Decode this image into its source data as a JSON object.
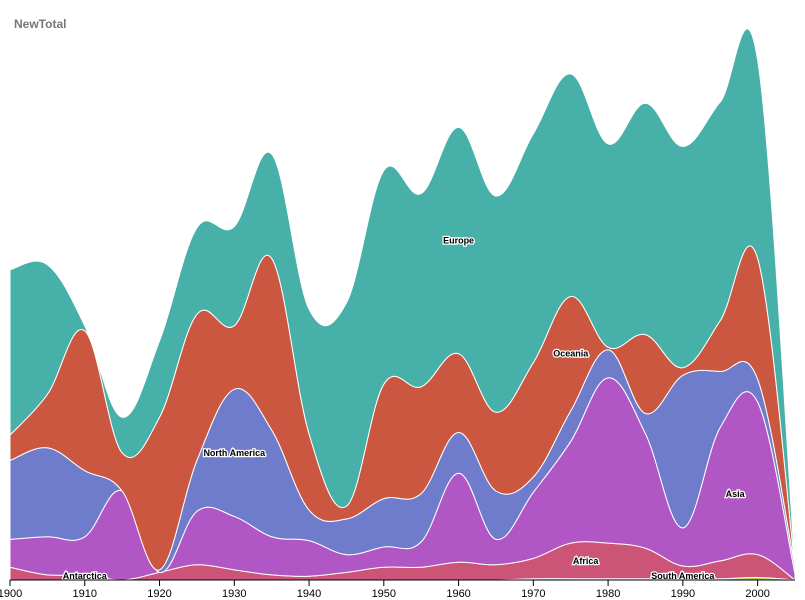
{
  "chart_data": {
    "type": "area",
    "title": "NewTotal",
    "xlabel": "",
    "ylabel": "",
    "layout": "streamgraph",
    "xlim": [
      1900,
      2005
    ],
    "x_ticks": [
      "1900",
      "1910",
      "1920",
      "1930",
      "1940",
      "1950",
      "1960",
      "1970",
      "1980",
      "1990",
      "2000"
    ],
    "x": [
      1900,
      1905,
      1910,
      1915,
      1920,
      1925,
      1930,
      1935,
      1940,
      1945,
      1950,
      1955,
      1960,
      1965,
      1970,
      1975,
      1980,
      1985,
      1990,
      1995,
      2000,
      2005
    ],
    "series": [
      {
        "name": "Antarctica",
        "color": "#f2a84b",
        "values": [
          0,
          0,
          0,
          0,
          0,
          0,
          0,
          0,
          0,
          0,
          0,
          0,
          0,
          0,
          0,
          0,
          0,
          0,
          0,
          0,
          0,
          0
        ]
      },
      {
        "name": "South America",
        "color": "#a8c83e",
        "values": [
          0,
          0,
          0,
          0,
          0,
          0,
          0,
          0,
          0,
          0,
          0,
          0,
          0,
          0,
          1,
          1,
          1,
          1,
          1,
          1,
          2,
          0
        ]
      },
      {
        "name": "Africa",
        "color": "#cc5577",
        "values": [
          10,
          4,
          4,
          0,
          6,
          12,
          8,
          4,
          3,
          6,
          10,
          10,
          14,
          12,
          16,
          28,
          28,
          24,
          10,
          14,
          18,
          0
        ]
      },
      {
        "name": "Asia",
        "color": "#b157c5",
        "values": [
          22,
          30,
          30,
          70,
          0,
          42,
          42,
          30,
          28,
          14,
          16,
          20,
          70,
          20,
          52,
          80,
          130,
          90,
          30,
          105,
          120,
          5
        ]
      },
      {
        "name": "North America",
        "color": "#6e7ccb",
        "values": [
          62,
          70,
          52,
          0,
          2,
          40,
          100,
          84,
          24,
          28,
          38,
          38,
          32,
          38,
          12,
          24,
          22,
          16,
          120,
          44,
          18,
          5
        ]
      },
      {
        "name": "Oceania",
        "color": "#cc5740",
        "values": [
          20,
          42,
          110,
          30,
          120,
          115,
          50,
          135,
          60,
          10,
          90,
          84,
          62,
          62,
          90,
          90,
          2,
          62,
          6,
          40,
          95,
          0
        ]
      },
      {
        "name": "Europe",
        "color": "#47b0a8",
        "values": [
          130,
          102,
          4,
          28,
          60,
          68,
          78,
          82,
          98,
          160,
          168,
          152,
          178,
          170,
          180,
          175,
          160,
          182,
          174,
          172,
          156,
          0
        ]
      }
    ],
    "labels": [
      {
        "text": "Antarctica",
        "series": "Antarctica",
        "x": 1910
      },
      {
        "text": "South America",
        "series": "South America",
        "x": 1990
      },
      {
        "text": "Africa",
        "series": "Africa",
        "x": 1977
      },
      {
        "text": "Asia",
        "series": "Asia",
        "x": 1997
      },
      {
        "text": "North America",
        "series": "North America",
        "x": 1930
      },
      {
        "text": "Oceania",
        "series": "Oceania",
        "x": 1975
      },
      {
        "text": "Europe",
        "series": "Europe",
        "x": 1960
      }
    ],
    "grid": false,
    "legend": "none"
  }
}
